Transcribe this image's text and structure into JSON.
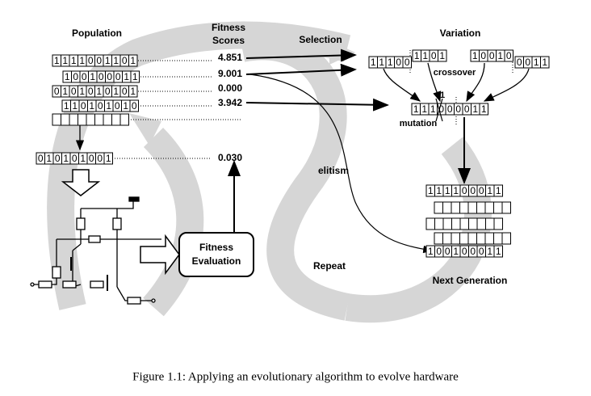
{
  "labels": {
    "population": "Population",
    "fitness": "Fitness",
    "scores": "Scores",
    "selection": "Selection",
    "variation": "Variation",
    "crossover": "crossover",
    "mutation": "mutation",
    "mutation_bit": "1",
    "elitism": "elitism",
    "repeat": "Repeat",
    "next_generation": "Next Generation",
    "evaluation_line1": "Fitness",
    "evaluation_line2": "Evaluation"
  },
  "population": [
    "1111001101",
    "100100011",
    "0101010101",
    "110101010"
  ],
  "scores": [
    "4.851",
    "9.001",
    "0.000",
    "3.942"
  ],
  "candidate": "010101001",
  "candidate_score": "0.030",
  "parents": [
    "11100",
    "1101",
    "10010",
    "0011"
  ],
  "child": "111000011",
  "next_generation": [
    "111100011",
    "100100011"
  ],
  "caption": "Figure 1.1: Applying an evolutionary algorithm to evolve hardware"
}
